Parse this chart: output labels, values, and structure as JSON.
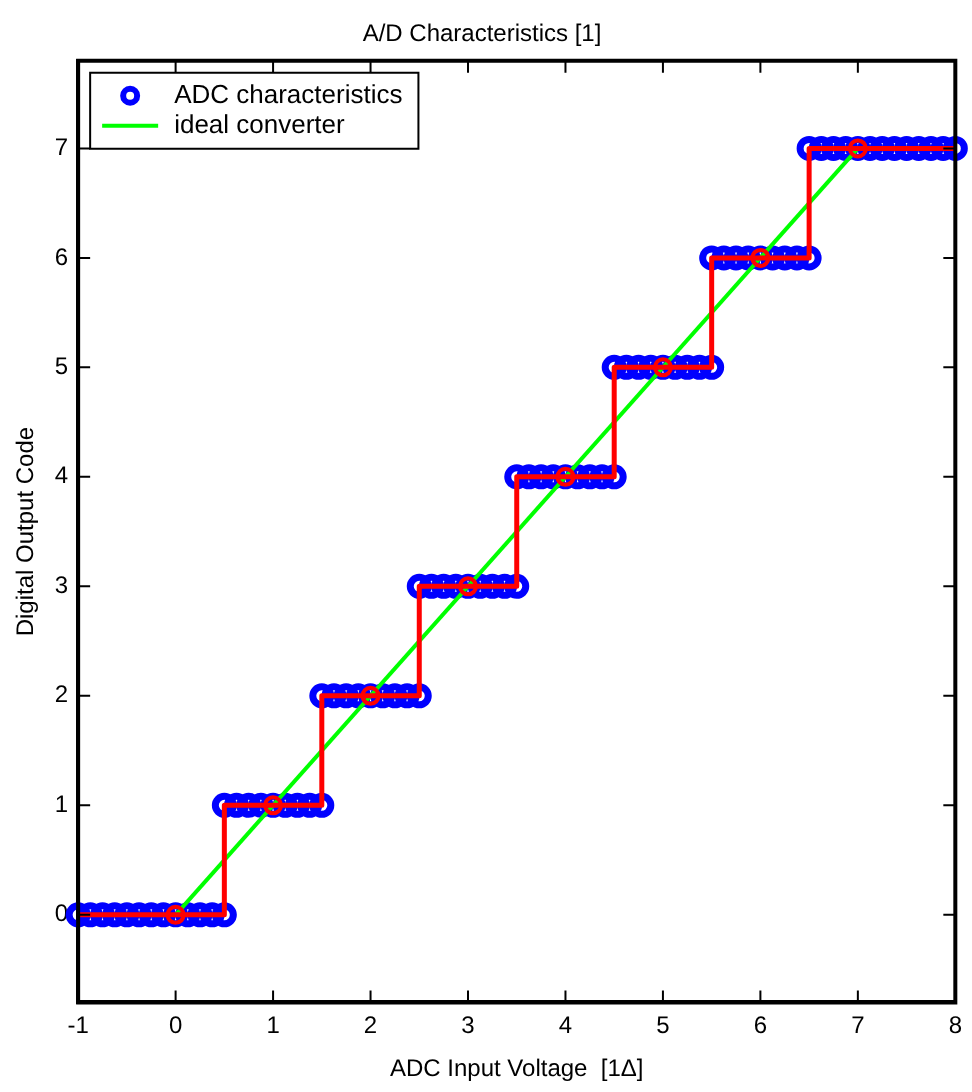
{
  "chart_data": {
    "type": "scatter",
    "title": "A/D Characteristics [1]",
    "xlabel": "ADC Input Voltage  [1Δ]",
    "ylabel": "Digital Output Code",
    "xlim": [
      -1,
      8
    ],
    "xticks": [
      -1,
      0,
      1,
      2,
      3,
      4,
      5,
      6,
      7,
      8
    ],
    "ylim": [
      -0.8,
      7.8
    ],
    "yticks": [
      0,
      1,
      2,
      3,
      4,
      5,
      6,
      7
    ],
    "grid": false,
    "legend": "top left",
    "series": [
      {
        "name": "ADC characteristics",
        "type": "scatter",
        "color": "#0000ff",
        "marker": "circle",
        "x": [
          -1,
          -0.875,
          -0.75,
          -0.625,
          -0.5,
          -0.375,
          -0.25,
          -0.125,
          0,
          0.125,
          0.25,
          0.375,
          0.5,
          0.5,
          0.625,
          0.75,
          0.875,
          1,
          1.125,
          1.25,
          1.375,
          1.5,
          1.5,
          1.625,
          1.75,
          1.875,
          2,
          2.125,
          2.25,
          2.375,
          2.5,
          2.5,
          2.625,
          2.75,
          2.875,
          3,
          3.125,
          3.25,
          3.375,
          3.5,
          3.5,
          3.625,
          3.75,
          3.875,
          4,
          4.125,
          4.25,
          4.375,
          4.5,
          4.5,
          4.625,
          4.75,
          4.875,
          5,
          5.125,
          5.25,
          5.375,
          5.5,
          5.5,
          5.625,
          5.75,
          5.875,
          6,
          6.125,
          6.25,
          6.375,
          6.5,
          6.5,
          6.625,
          6.75,
          6.875,
          7,
          7.125,
          7.25,
          7.375,
          7.5,
          7.625,
          7.75,
          7.875,
          8
        ],
        "values": [
          0,
          0,
          0,
          0,
          0,
          0,
          0,
          0,
          0,
          0,
          0,
          0,
          0,
          1,
          1,
          1,
          1,
          1,
          1,
          1,
          1,
          1,
          2,
          2,
          2,
          2,
          2,
          2,
          2,
          2,
          2,
          3,
          3,
          3,
          3,
          3,
          3,
          3,
          3,
          3,
          4,
          4,
          4,
          4,
          4,
          4,
          4,
          4,
          4,
          5,
          5,
          5,
          5,
          5,
          5,
          5,
          5,
          5,
          6,
          6,
          6,
          6,
          6,
          6,
          6,
          6,
          6,
          7,
          7,
          7,
          7,
          7,
          7,
          7,
          7,
          7,
          7,
          7,
          7,
          7
        ]
      },
      {
        "name": "ideal converter",
        "type": "line",
        "color": "#00ff00",
        "marker": "none",
        "x": [
          0,
          7
        ],
        "values": [
          0,
          7
        ]
      },
      {
        "type": "step",
        "color": "#ff0000",
        "marker": "none",
        "x": [
          -1,
          0.5,
          1.5,
          2.5,
          3.5,
          4.5,
          5.5,
          6.5,
          8
        ],
        "values": [
          0,
          1,
          2,
          3,
          4,
          5,
          6,
          7,
          7
        ]
      },
      {
        "type": "scatter",
        "color": "#ff0000",
        "marker": "circle",
        "x": [
          0,
          1,
          2,
          3,
          4,
          5,
          6,
          7
        ],
        "values": [
          0,
          1,
          2,
          3,
          4,
          5,
          6,
          7
        ]
      }
    ]
  }
}
